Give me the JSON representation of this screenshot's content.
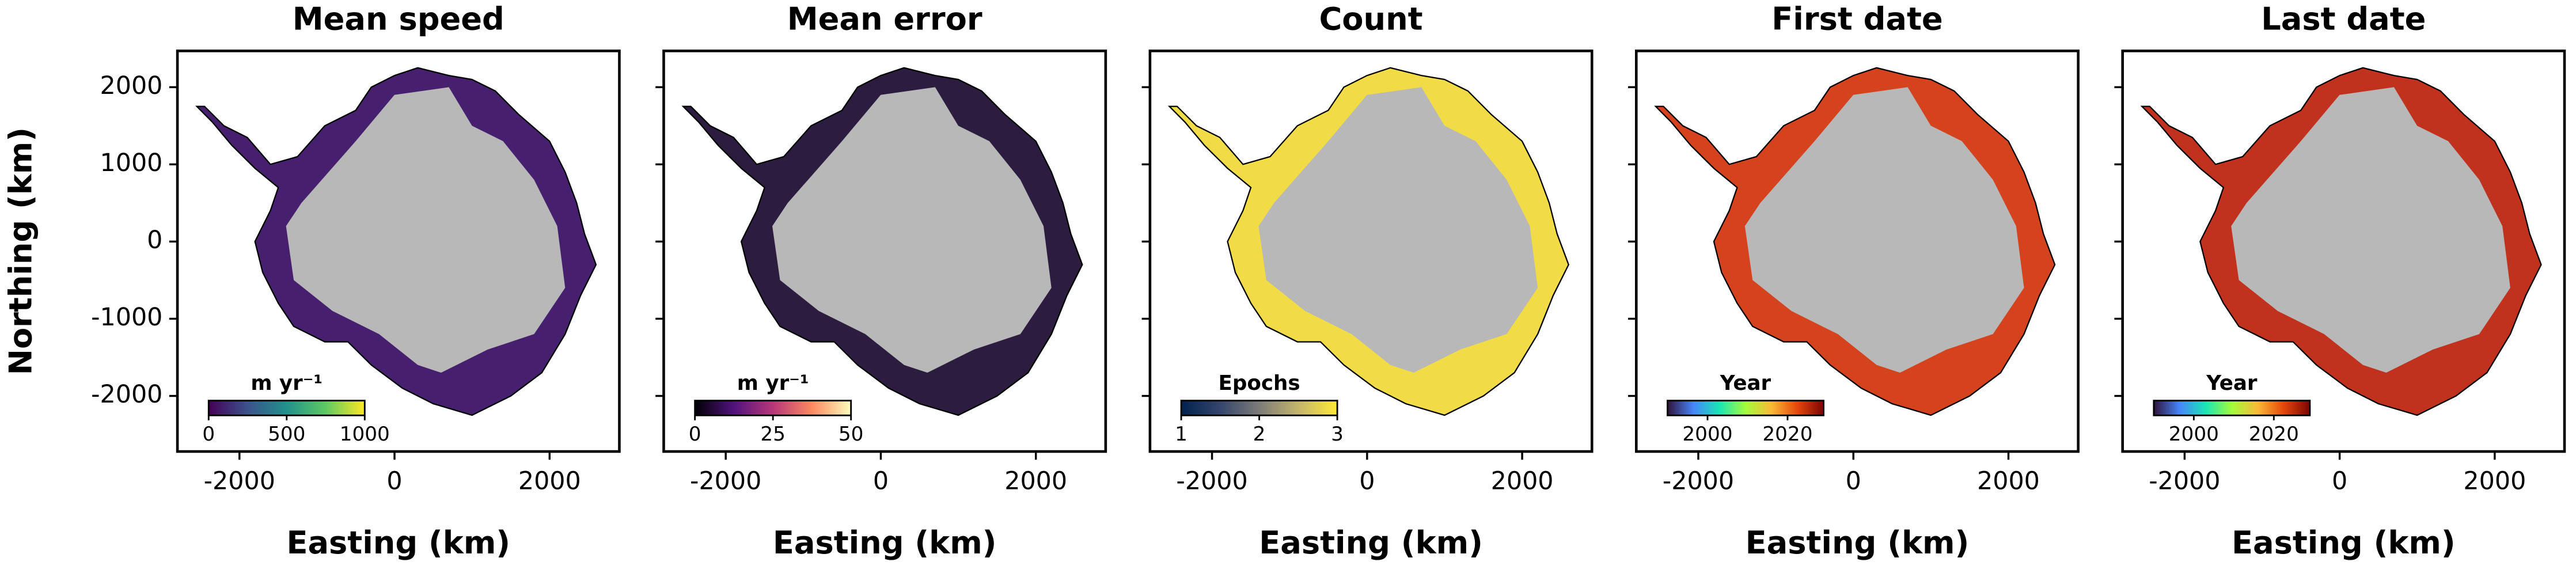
{
  "chart_data": [
    {
      "type": "map",
      "title": "Mean speed",
      "xlabel": "Easting (km)",
      "ylabel": "Northing (km)",
      "xlim": [
        -2800,
        2900
      ],
      "ylim": [
        -2720,
        2470
      ],
      "xticks": [
        -2000,
        0,
        2000
      ],
      "yticks": [
        -2000,
        -1000,
        0,
        1000,
        2000
      ],
      "fill": "#46206f",
      "colorbar": {
        "label": "m yr⁻¹",
        "lim": [
          0,
          1000
        ],
        "ticks": [
          0,
          500,
          1000
        ],
        "colors": [
          "#440154",
          "#3b528b",
          "#21918c",
          "#5ec962",
          "#fde725"
        ]
      }
    },
    {
      "type": "map",
      "title": "Mean error",
      "xlabel": "Easting (km)",
      "xlim": [
        -2800,
        2900
      ],
      "ylim": [
        -2720,
        2470
      ],
      "xticks": [
        -2000,
        0,
        2000
      ],
      "fill": "#2c1d40",
      "colorbar": {
        "label": "m yr⁻¹",
        "lim": [
          0,
          50
        ],
        "ticks": [
          0,
          25,
          50
        ],
        "colors": [
          "#000004",
          "#51127c",
          "#b73779",
          "#fc8961",
          "#fcfdbf"
        ]
      }
    },
    {
      "type": "map",
      "title": "Count",
      "xlabel": "Easting (km)",
      "xlim": [
        -2800,
        2900
      ],
      "ylim": [
        -2720,
        2470
      ],
      "xticks": [
        -2000,
        0,
        2000
      ],
      "fill": "#f1dc47",
      "colorbar": {
        "label": "Epochs",
        "lim": [
          1,
          3
        ],
        "ticks": [
          1,
          2,
          3
        ],
        "colors": [
          "#00224e",
          "#35456c",
          "#7c7b78",
          "#c4b56c",
          "#fee838"
        ]
      }
    },
    {
      "type": "map",
      "title": "First date",
      "xlabel": "Easting (km)",
      "xlim": [
        -2800,
        2900
      ],
      "ylim": [
        -2720,
        2470
      ],
      "xticks": [
        -2000,
        0,
        2000
      ],
      "fill": "#d4431d",
      "colorbar": {
        "label": "Year",
        "lim": [
          1990,
          2029
        ],
        "ticks": [
          2000,
          2020
        ],
        "colors": [
          "#30123b",
          "#4686fb",
          "#1be5b5",
          "#a2fc3c",
          "#fbb938",
          "#e4460a",
          "#7a0403"
        ]
      }
    },
    {
      "type": "map",
      "title": "Last date",
      "xlabel": "Easting (km)",
      "xlim": [
        -2800,
        2900
      ],
      "ylim": [
        -2720,
        2470
      ],
      "xticks": [
        -2000,
        0,
        2000
      ],
      "fill": "#c1321e",
      "colorbar": {
        "label": "Year",
        "lim": [
          1990,
          2029
        ],
        "ticks": [
          2000,
          2020
        ],
        "colors": [
          "#30123b",
          "#4686fb",
          "#1be5b5",
          "#a2fc3c",
          "#fbb938",
          "#e4460a",
          "#7a0403"
        ]
      }
    }
  ]
}
